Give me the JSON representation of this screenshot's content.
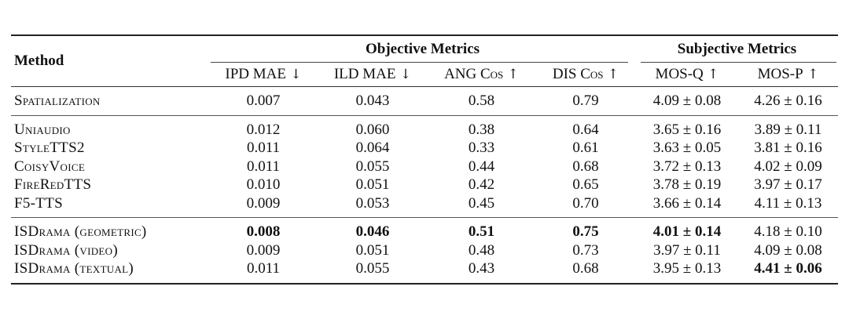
{
  "header": {
    "method": "Method",
    "objective_group": "Objective Metrics",
    "subjective_group": "Subjective Metrics",
    "columns": [
      {
        "label": "IPD MAE",
        "arrow": "↓"
      },
      {
        "label": "ILD MAE",
        "arrow": "↓"
      },
      {
        "label": "ANG Cos",
        "arrow": "↑"
      },
      {
        "label": "DIS Cos",
        "arrow": "↑"
      },
      {
        "label": "MOS-Q",
        "arrow": "↑"
      },
      {
        "label": "MOS-P",
        "arrow": "↑"
      }
    ]
  },
  "groups": [
    {
      "rows": [
        {
          "method": "Spatialization",
          "values": [
            "0.007",
            "0.043",
            "0.58",
            "0.79",
            "4.09 ± 0.08",
            "4.26 ± 0.16"
          ],
          "bold": []
        }
      ]
    },
    {
      "rows": [
        {
          "method": "Uniaudio",
          "values": [
            "0.012",
            "0.060",
            "0.38",
            "0.64",
            "3.65 ± 0.16",
            "3.89 ± 0.11"
          ],
          "bold": []
        },
        {
          "method": "StyleTTS2",
          "values": [
            "0.011",
            "0.064",
            "0.33",
            "0.61",
            "3.63 ± 0.05",
            "3.81 ± 0.16"
          ],
          "bold": []
        },
        {
          "method": "CoisyVoice",
          "values": [
            "0.011",
            "0.055",
            "0.44",
            "0.68",
            "3.72 ± 0.13",
            "4.02 ± 0.09"
          ],
          "bold": []
        },
        {
          "method": "FireRedTTS",
          "values": [
            "0.010",
            "0.051",
            "0.42",
            "0.65",
            "3.78 ± 0.19",
            "3.97 ± 0.17"
          ],
          "bold": []
        },
        {
          "method": "F5-TTS",
          "values": [
            "0.009",
            "0.053",
            "0.45",
            "0.70",
            "3.66 ± 0.14",
            "4.11 ± 0.13"
          ],
          "bold": []
        }
      ]
    },
    {
      "rows": [
        {
          "method": "ISDrama (geometric)",
          "values": [
            "0.008",
            "0.046",
            "0.51",
            "0.75",
            "4.01 ± 0.14",
            "4.18 ± 0.10"
          ],
          "bold": [
            0,
            1,
            2,
            3,
            4
          ]
        },
        {
          "method": "ISDrama (video)",
          "values": [
            "0.009",
            "0.051",
            "0.48",
            "0.73",
            "3.97 ± 0.11",
            "4.09 ± 0.08"
          ],
          "bold": []
        },
        {
          "method": "ISDrama (textual)",
          "values": [
            "0.011",
            "0.055",
            "0.43",
            "0.68",
            "3.95 ± 0.13",
            "4.41 ± 0.06"
          ],
          "bold": [
            5
          ]
        }
      ]
    }
  ]
}
